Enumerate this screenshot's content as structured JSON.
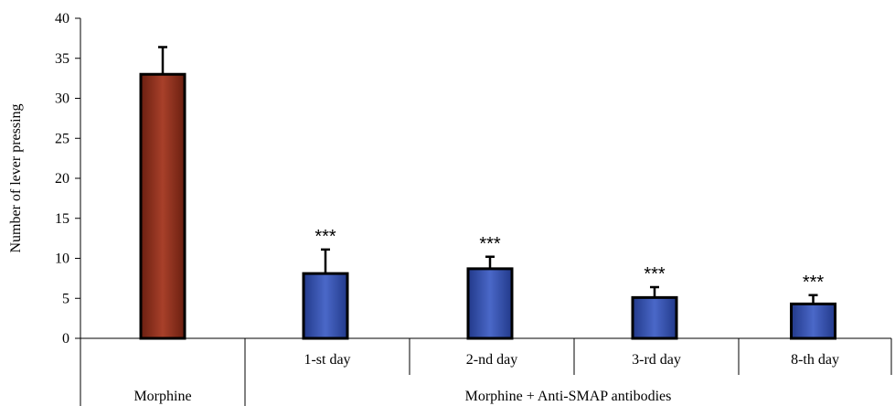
{
  "chart_data": {
    "type": "bar",
    "ylabel": "Number of lever pressing",
    "ylim": [
      0,
      40
    ],
    "yticks": [
      0,
      5,
      10,
      15,
      20,
      25,
      30,
      35,
      40
    ],
    "grid": false,
    "bars": [
      {
        "category": "",
        "group": "Morphine",
        "value": 33,
        "error": 3.4,
        "color": "#8B2E1A",
        "annotation": ""
      },
      {
        "category": "1-st day",
        "group": "Morphine + Anti-SMAP antibodies",
        "value": 8.1,
        "error": 3.0,
        "color": "#2E4CA8",
        "annotation": "***"
      },
      {
        "category": "2-nd day",
        "group": "Morphine + Anti-SMAP antibodies",
        "value": 8.7,
        "error": 1.5,
        "color": "#2E4CA8",
        "annotation": "***"
      },
      {
        "category": "3-rd day",
        "group": "Morphine + Anti-SMAP antibodies",
        "value": 5.1,
        "error": 1.3,
        "color": "#2E4CA8",
        "annotation": "***"
      },
      {
        "category": "8-th day",
        "group": "Morphine + Anti-SMAP antibodies",
        "value": 4.3,
        "error": 1.1,
        "color": "#2E4CA8",
        "annotation": "***"
      }
    ],
    "groups": [
      "Morphine",
      "Morphine + Anti-SMAP antibodies"
    ]
  }
}
